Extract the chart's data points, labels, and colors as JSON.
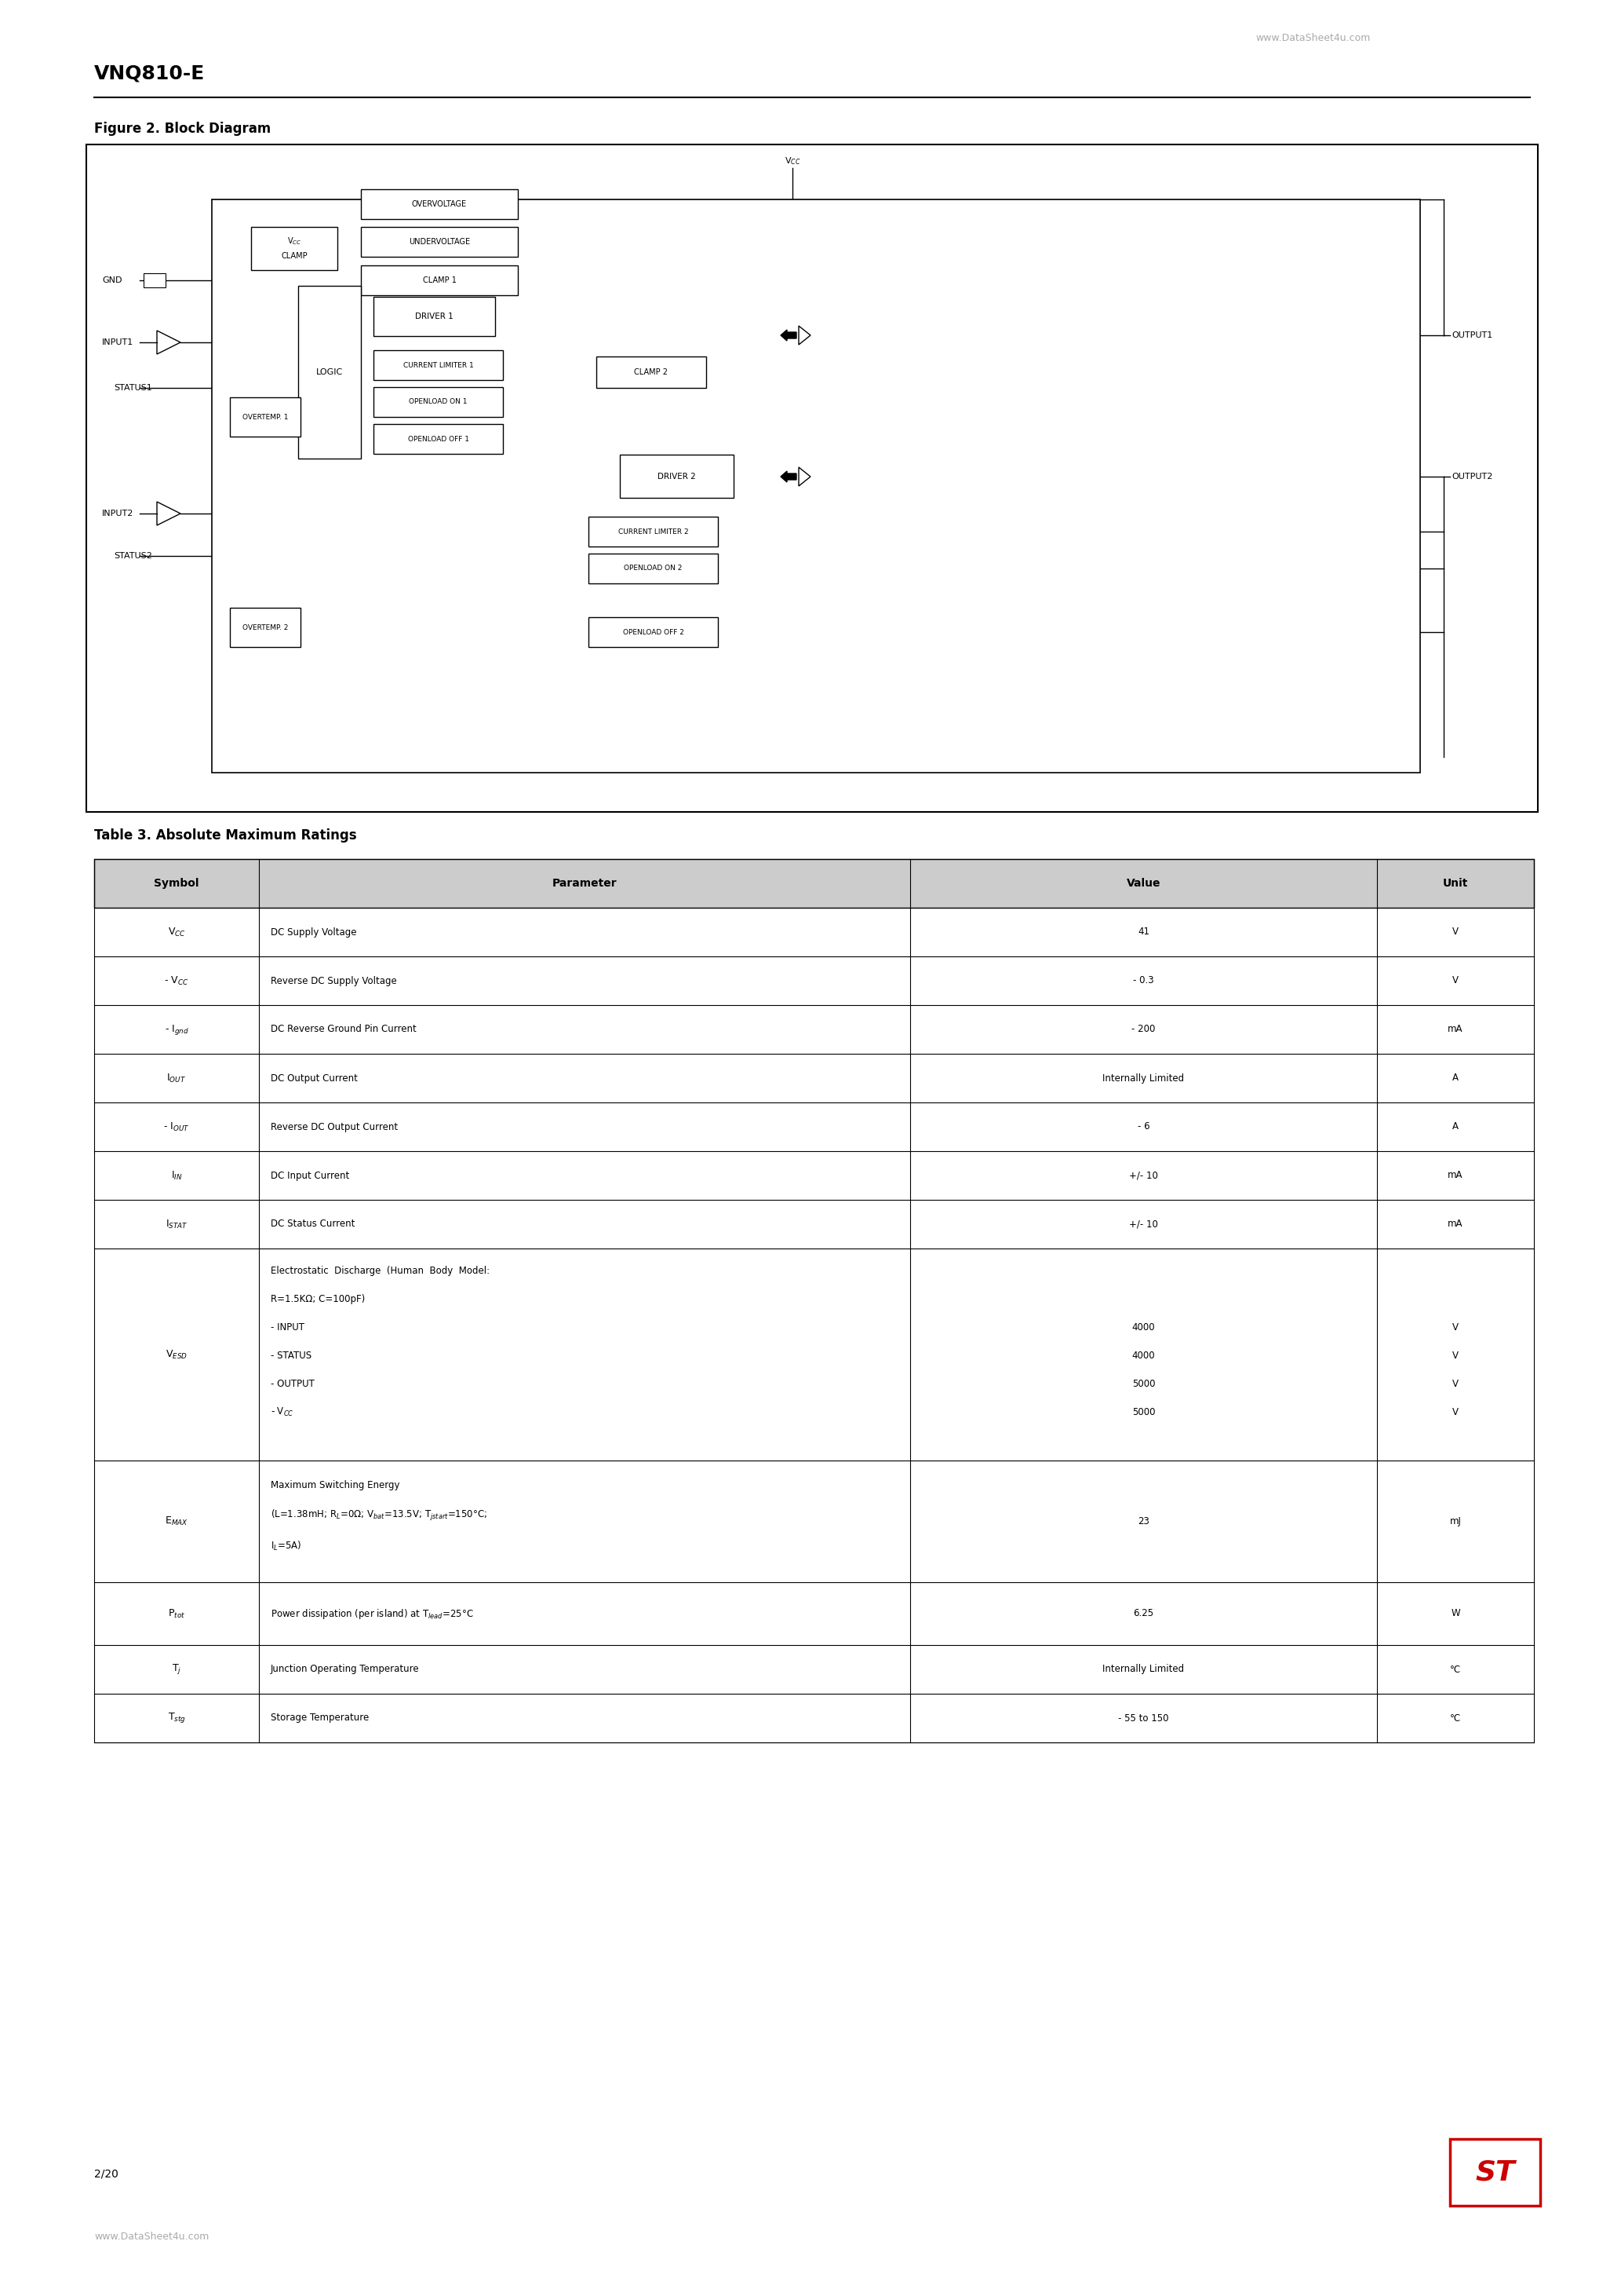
{
  "page_title": "VNQ810-E",
  "website_header": "www.DataSheet4u.com",
  "website_footer": "www.DataSheet4u.com",
  "page_number": "2/20",
  "figure_title": "Figure 2. Block Diagram",
  "table_title": "Table 3. Absolute Maximum Ratings",
  "table_headers": [
    "Symbol",
    "Parameter",
    "Value",
    "Unit"
  ],
  "table_rows": [
    [
      "VCC_sym",
      "DC Supply Voltage",
      "41",
      "V"
    ],
    [
      "-VCC_sym",
      "Reverse DC Supply Voltage",
      "- 0.3",
      "V"
    ],
    [
      "-Ignd_sym",
      "DC Reverse Ground Pin Current",
      "- 200",
      "mA"
    ],
    [
      "IOUT_sym",
      "DC Output Current",
      "Internally Limited",
      "A"
    ],
    [
      "-IOUT_sym",
      "Reverse DC Output Current",
      "- 6",
      "A"
    ],
    [
      "IIN_sym",
      "DC Input Current",
      "+/- 10",
      "mA"
    ],
    [
      "ISTAT_sym",
      "DC Status Current",
      "+/- 10",
      "mA"
    ],
    [
      "VESD_sym",
      "esd_multiline",
      "4000\n4000\n5000\n5000",
      "V\nV\nV\nV"
    ],
    [
      "EMAX_sym",
      "emax_multiline",
      "23",
      "mJ"
    ],
    [
      "Ptot_sym",
      "ptot_line",
      "6.25",
      "W"
    ],
    [
      "Tj_sym",
      "Junction Operating Temperature",
      "Internally Limited",
      "°C"
    ],
    [
      "Tstg_sym",
      "Storage Temperature",
      "- 55 to 150",
      "°C"
    ]
  ],
  "bg_color": "#ffffff",
  "text_color": "#000000",
  "header_bg": "#c8c8c8",
  "line_color": "#000000"
}
